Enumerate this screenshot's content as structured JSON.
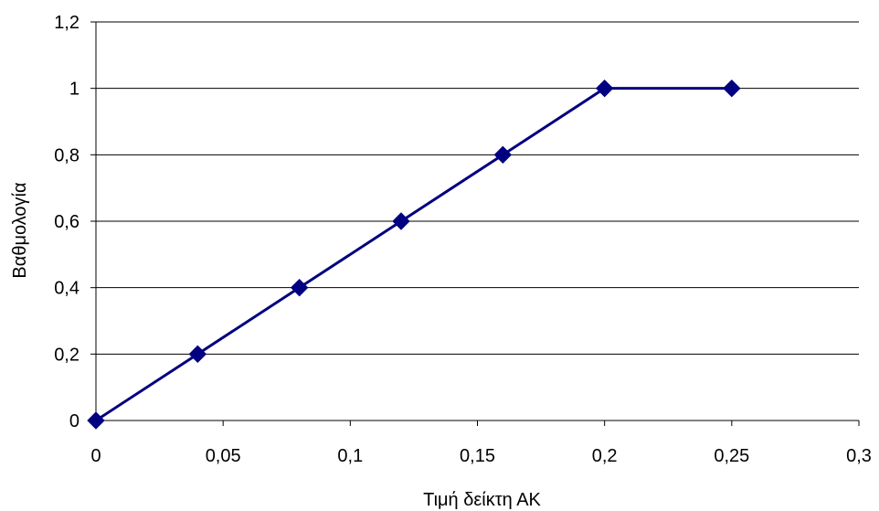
{
  "chart_data": {
    "type": "line",
    "title": "",
    "xlabel": "Τιμή δείκτη ΑΚ",
    "ylabel": "Βαθμολογία",
    "xlim": [
      0,
      0.3
    ],
    "ylim": [
      0,
      1.2
    ],
    "x_ticks": [
      0,
      0.05,
      0.1,
      0.15,
      0.2,
      0.25,
      0.3
    ],
    "x_tick_labels": [
      "0",
      "0,05",
      "0,1",
      "0,15",
      "0,2",
      "0,25",
      "0,3"
    ],
    "y_ticks": [
      0,
      0.2,
      0.4,
      0.6,
      0.8,
      1,
      1.2
    ],
    "y_tick_labels": [
      "0",
      "0,2",
      "0,4",
      "0,6",
      "0,8",
      "1",
      "1,2"
    ],
    "grid": "horizontal",
    "legend": "none",
    "series": [
      {
        "x": [
          0,
          0.04,
          0.08,
          0.12,
          0.16,
          0.2,
          0.25
        ],
        "y": [
          0,
          0.2,
          0.4,
          0.6,
          0.8,
          1,
          1
        ],
        "color": "#000080",
        "marker": "diamond"
      }
    ]
  }
}
